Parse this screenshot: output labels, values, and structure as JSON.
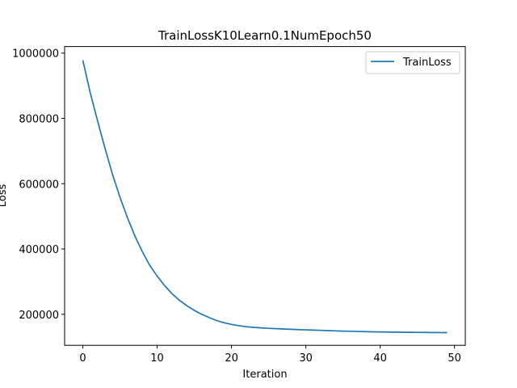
{
  "chart_data": {
    "type": "line",
    "title": "TrainLossK10Learn0.1NumEpoch50",
    "xlabel": "Iteration",
    "ylabel": "Loss",
    "xlim": [
      -2.45,
      51.45
    ],
    "ylim": [
      105000,
      1020000
    ],
    "xticks": [
      0,
      10,
      20,
      30,
      40,
      50
    ],
    "yticks": [
      200000,
      400000,
      600000,
      800000,
      1000000
    ],
    "grid": false,
    "legend_position": "upper-right",
    "colors": {
      "line": "#1f77b4",
      "axes": "#000000",
      "legend_border": "#cccccc"
    },
    "series": [
      {
        "name": "TrainLoss",
        "x": [
          0,
          1,
          2,
          3,
          4,
          5,
          6,
          7,
          8,
          9,
          10,
          11,
          12,
          13,
          14,
          15,
          16,
          17,
          18,
          19,
          20,
          21,
          22,
          23,
          24,
          25,
          26,
          27,
          28,
          29,
          30,
          31,
          32,
          33,
          34,
          35,
          36,
          37,
          38,
          39,
          40,
          41,
          42,
          43,
          44,
          45,
          46,
          47,
          48,
          49
        ],
        "y": [
          978000,
          878000,
          791000,
          707000,
          628000,
          558000,
          496000,
          440000,
          392000,
          350000,
          317000,
          288000,
          263000,
          243000,
          226000,
          212000,
          200000,
          190000,
          181000,
          174000,
          169000,
          165000,
          162000,
          160000,
          158500,
          157000,
          156000,
          155000,
          154000,
          153200,
          152400,
          151600,
          150800,
          150000,
          149300,
          148600,
          148000,
          147400,
          146900,
          146400,
          146000,
          145700,
          145400,
          145100,
          144800,
          144600,
          144400,
          144200,
          144000,
          143800
        ]
      }
    ]
  }
}
